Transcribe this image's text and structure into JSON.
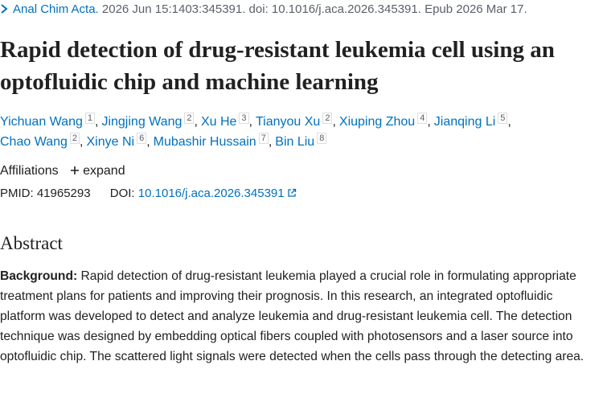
{
  "citation": {
    "journal": "Anal Chim Acta.",
    "details": "2026 Jun 15:1403:345391. doi: 10.1016/j.aca.2026.345391. Epub 2026 Mar 17."
  },
  "title": "Rapid detection of drug-resistant leukemia cell using an optofluidic chip and machine learning",
  "author_separator": ",",
  "authors": [
    {
      "name": "Yichuan Wang",
      "sup": "1"
    },
    {
      "name": "Jingjing Wang",
      "sup": "2"
    },
    {
      "name": "Xu He",
      "sup": "3"
    },
    {
      "name": "Tianyou Xu",
      "sup": "2"
    },
    {
      "name": "Xiuping Zhou",
      "sup": "4"
    },
    {
      "name": "Jianqing Li",
      "sup": "5"
    },
    {
      "name": "Chao Wang",
      "sup": "2"
    },
    {
      "name": "Xinye Ni",
      "sup": "6"
    },
    {
      "name": "Mubashir Hussain",
      "sup": "7"
    },
    {
      "name": "Bin Liu",
      "sup": "8"
    }
  ],
  "affiliations": {
    "label": "Affiliations",
    "toggle": "expand"
  },
  "identifiers": {
    "pmid_label": "PMID:",
    "pmid": "41965293",
    "doi_label": "DOI:",
    "doi": "10.1016/j.aca.2026.345391"
  },
  "abstract": {
    "heading": "Abstract",
    "background_label": "Background:",
    "background_text": "Rapid detection of drug-resistant leukemia played a crucial role in formulating appropriate treatment plans for patients and improving their prognosis. In this research, an integrated optofluidic platform was developed to detect and analyze leukemia and drug-resistant leukemia cell. The detection technique was designed by embedding optical fibers coupled with photosensors and a laser source into optofluidic chip. The scattered light signals were detected when the cells pass through the detecting area."
  }
}
